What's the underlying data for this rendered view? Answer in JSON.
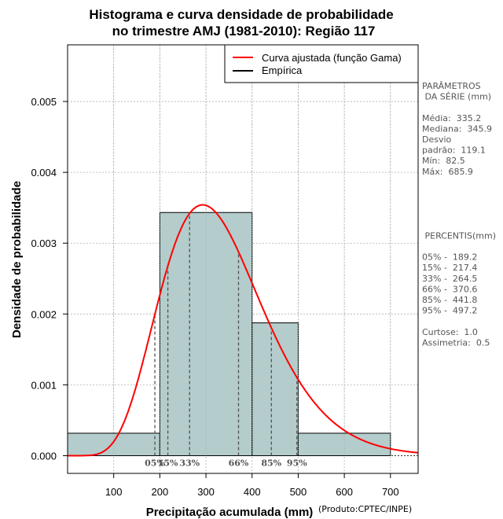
{
  "chart_data": {
    "type": "bar",
    "title": [
      "Histograma e curva densidade de probabilidade",
      "no trimestre AMJ (1981-2010): Região 117"
    ],
    "xlabel": "Precipitação acumulada (mm)",
    "ylabel": "Densidade de probabilidade",
    "product": "(Produto:CPTEC/INPE)",
    "xlim": [
      0,
      760
    ],
    "ylim": [
      -0.00025,
      0.0058
    ],
    "x_ticks": [
      100,
      200,
      300,
      400,
      500,
      600,
      700
    ],
    "y_ticks": [
      0.0,
      0.001,
      0.002,
      0.003,
      0.004,
      0.005
    ],
    "y_tick_labels": [
      "0.000",
      "0.001",
      "0.002",
      "0.003",
      "0.004",
      "0.005"
    ],
    "grid": true,
    "colors": {
      "bar_fill": "#b4cccc",
      "curve": "#ff0000",
      "grid": "#b0b0b0",
      "percentile_line": "#505050"
    },
    "histogram": [
      {
        "x0": 0,
        "x1": 200,
        "density": 0.000317
      },
      {
        "x0": 200,
        "x1": 400,
        "density": 0.003433
      },
      {
        "x0": 400,
        "x1": 500,
        "density": 0.001875
      },
      {
        "x0": 500,
        "x1": 700,
        "density": 0.000317
      }
    ],
    "gamma_fit": {
      "mean": 335.2,
      "std": 119.1
    },
    "legend": {
      "position": "top-right",
      "entries": [
        {
          "label": "Curva ajustada (função Gama)",
          "color": "#ff0000"
        },
        {
          "label": "Empírica",
          "color": "#000000"
        }
      ]
    },
    "percentiles": [
      {
        "label": "05%",
        "value": 189.2
      },
      {
        "label": "15%",
        "value": 217.4
      },
      {
        "label": "33%",
        "value": 264.5
      },
      {
        "label": "66%",
        "value": 370.6
      },
      {
        "label": "85%",
        "value": 441.8
      },
      {
        "label": "95%",
        "value": 497.2
      }
    ],
    "side_panel": [
      "PARÂMETROS",
      " DA SÉRIE (mm)",
      "",
      "Média:  335.2",
      "Mediana:  345.9",
      "Desvio",
      "padrão:  119.1",
      "Mín:  82.5",
      "Máx:  685.9",
      "",
      "",
      "",
      "",
      "",
      " PERCENTIS(mm)",
      "",
      "05% -  189.2",
      "15% -  217.4",
      "33% -  264.5",
      "66% -  370.6",
      "85% -  441.8",
      "95% -  497.2",
      "",
      "Curtose:  1.0",
      "Assimetria:  0.5"
    ]
  }
}
